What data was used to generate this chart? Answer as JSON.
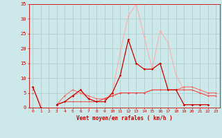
{
  "x": [
    0,
    1,
    2,
    3,
    4,
    5,
    6,
    7,
    8,
    9,
    10,
    11,
    12,
    13,
    14,
    15,
    16,
    17,
    18,
    19,
    20,
    21,
    22,
    23
  ],
  "series1": [
    7,
    0,
    null,
    1,
    2,
    4,
    6,
    3,
    2,
    2,
    5,
    11,
    23,
    15,
    13,
    13,
    15,
    6,
    6,
    1,
    1,
    1,
    1,
    null
  ],
  "series2": [
    7,
    1,
    null,
    1,
    2,
    4,
    5,
    3,
    2,
    3,
    5,
    19,
    31,
    35,
    24,
    13,
    26,
    22,
    11,
    6,
    6,
    5,
    4,
    4
  ],
  "series3": [
    6,
    null,
    null,
    1,
    4,
    6,
    5,
    4,
    3,
    3,
    4,
    5,
    5,
    5,
    5,
    6,
    6,
    6,
    6,
    7,
    7,
    6,
    5,
    5
  ],
  "series4": [
    5,
    null,
    null,
    1,
    2,
    2,
    2,
    2,
    2,
    3,
    4,
    5,
    5,
    5,
    5,
    6,
    6,
    6,
    6,
    6,
    6,
    5,
    4,
    4
  ],
  "color_dark_red": "#cc0000",
  "color_light_red": "#ffaaaa",
  "color_medium_red": "#ff6666",
  "background_color": "#cce8e8",
  "grid_color": "#aacccc",
  "ylim": [
    0,
    35
  ],
  "yticks": [
    0,
    5,
    10,
    15,
    20,
    25,
    30,
    35
  ],
  "xlabel": "Vent moyen/en rafales ( km/h )"
}
